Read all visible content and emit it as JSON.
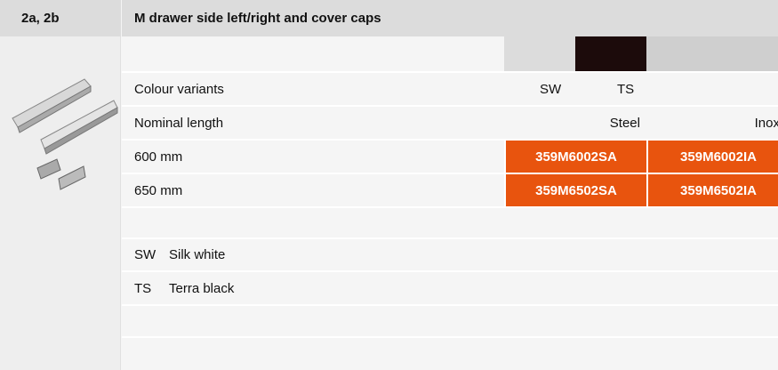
{
  "header": {
    "code": "2a, 2b",
    "title": "M drawer side left/right and cover caps"
  },
  "table": {
    "rows": [
      [
        "Colour variants",
        "SW",
        "TS"
      ],
      [
        "Nominal length",
        "Steel",
        "Inox"
      ],
      [
        "600 mm",
        "359M6002SA",
        "359M6002IA"
      ],
      [
        "650 mm",
        "359M6502SA",
        "359M6502IA"
      ]
    ]
  },
  "legend": [
    [
      "SW",
      "Silk white"
    ],
    [
      "TS",
      "Terra black"
    ]
  ]
}
